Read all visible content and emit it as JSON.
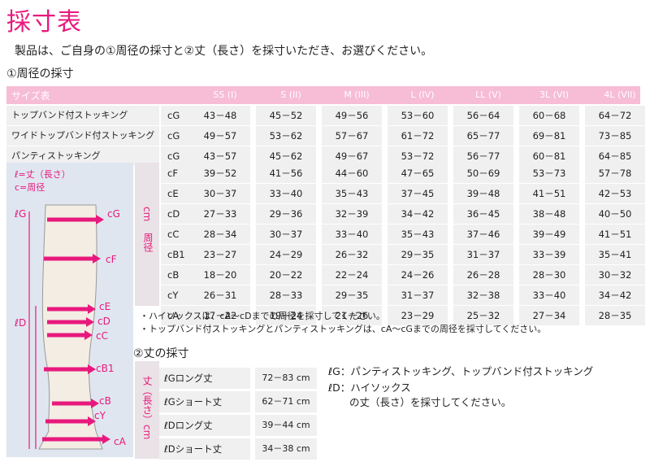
{
  "title": "採寸表",
  "intro": "製品は、ご自身の①周径の採寸と②丈（長さ）を採寸いただき、お選びください。",
  "section1": "①周径の採寸",
  "section2": "②丈の採寸",
  "table": {
    "header_label": "サイズ表",
    "sizes": [
      "SS (I)",
      "S (II)",
      "M (III)",
      "L (IV)",
      "LL (V)",
      "3L (VI)",
      "4L (VII)"
    ],
    "product_rows": [
      {
        "name": "トップバンド付ストッキング",
        "code": "cG",
        "values": [
          "43－48",
          "45－52",
          "49－56",
          "53－60",
          "56－64",
          "60－68",
          "64－72"
        ]
      },
      {
        "name": "ワイドトップバンド付ストッキング",
        "code": "cG",
        "values": [
          "49－57",
          "53－62",
          "57－67",
          "61－72",
          "65－77",
          "69－81",
          "73－85"
        ]
      },
      {
        "name": "パンティストッキング",
        "code": "cG",
        "values": [
          "43－57",
          "45－62",
          "49－67",
          "53－72",
          "56－77",
          "60－81",
          "64－85"
        ]
      }
    ],
    "measure_rows": [
      {
        "code": "cF",
        "values": [
          "39－52",
          "41－56",
          "44－60",
          "47－65",
          "50－69",
          "53－73",
          "57－78"
        ]
      },
      {
        "code": "cE",
        "values": [
          "30－37",
          "33－40",
          "35－43",
          "37－45",
          "39－48",
          "41－51",
          "42－53"
        ]
      },
      {
        "code": "cD",
        "values": [
          "27－33",
          "29－36",
          "32－39",
          "34－42",
          "36－45",
          "38－48",
          "40－50"
        ]
      },
      {
        "code": "cC",
        "values": [
          "28－34",
          "30－37",
          "33－40",
          "35－43",
          "37－46",
          "39－49",
          "41－51"
        ]
      },
      {
        "code": "cB1",
        "values": [
          "23－27",
          "24－29",
          "26－32",
          "29－35",
          "31－37",
          "33－39",
          "35－41"
        ]
      },
      {
        "code": "cB",
        "values": [
          "18－20",
          "20－22",
          "22－24",
          "24－26",
          "26－28",
          "28－30",
          "30－32"
        ]
      },
      {
        "code": "cY",
        "values": [
          "26－31",
          "28－33",
          "29－35",
          "31－37",
          "32－38",
          "33－40",
          "34－42"
        ]
      },
      {
        "code": "cA",
        "values": [
          "17－22",
          "19－24",
          "21－26",
          "23－29",
          "25－32",
          "27－34",
          "28－35"
        ]
      }
    ],
    "axis_label": "周径",
    "unit_label": "cm"
  },
  "notes": [
    "・ハイソックスは、cA～cDまでの周径を採寸してください。",
    "・トップバンド付ストッキングとパンティストッキングは、cA～cGまでの周径を採寸してください。"
  ],
  "legend": {
    "length": "ℓ=丈（長さ）",
    "circ": "c=周径"
  },
  "leg_labels": {
    "left": [
      "ℓG",
      "ℓD"
    ],
    "right": [
      "cG",
      "cF",
      "cE",
      "cD",
      "cC",
      "cB1",
      "cB",
      "cY",
      "cA"
    ]
  },
  "length_table": {
    "axis_label": "丈（長さ）cm",
    "rows": [
      {
        "name": "ℓGロング丈",
        "value": "72－83 cm"
      },
      {
        "name": "ℓGショート丈",
        "value": "62－71 cm"
      },
      {
        "name": "ℓDロング丈",
        "value": "39－44 cm"
      },
      {
        "name": "ℓDショート丈",
        "value": "34－38 cm"
      }
    ]
  },
  "length_notes": {
    "g_key": "ℓG",
    "g_text": "：パンティストッキング、トップバンド付ストッキング",
    "d_key": "ℓD",
    "d_text": "：ハイソックス",
    "d_text2": "の丈（長さ）を採寸してください。"
  },
  "colors": {
    "accent": "#e8197d",
    "header_bg": "#f7bcd6",
    "cell_bg": "#f0f0f0",
    "panel_bg": "#dfe6f0"
  }
}
